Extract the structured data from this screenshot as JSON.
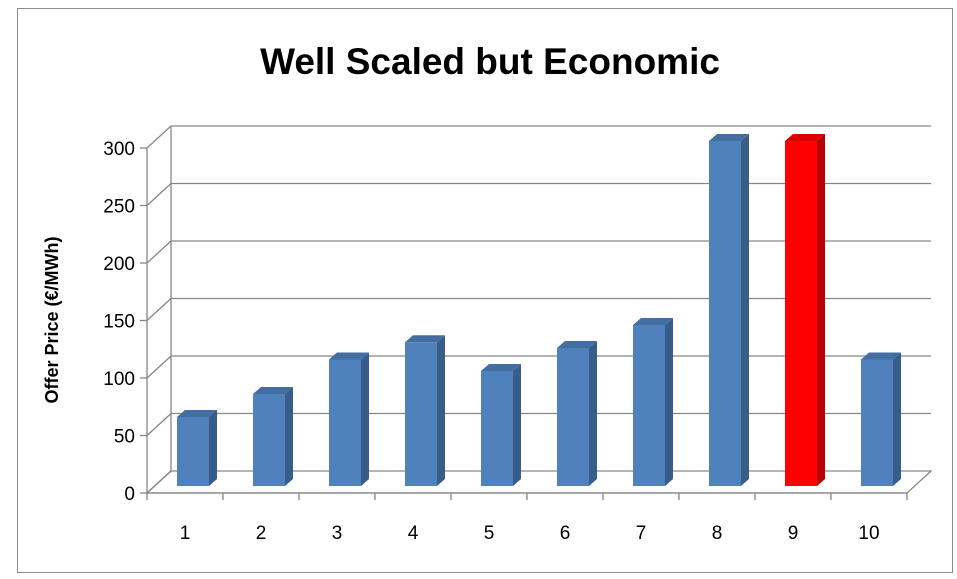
{
  "chart_data": {
    "type": "bar",
    "title": "Well Scaled but Economic",
    "xlabel": "",
    "ylabel": "Offer Price (€/MWh)",
    "categories": [
      "1",
      "2",
      "3",
      "4",
      "5",
      "6",
      "7",
      "8",
      "9",
      "10"
    ],
    "values": [
      60,
      80,
      110,
      125,
      100,
      120,
      140,
      300,
      300,
      110
    ],
    "ylim": [
      0,
      300
    ],
    "yticks": [
      "0",
      "50",
      "100",
      "150",
      "200",
      "250",
      "300"
    ],
    "grid": true,
    "legend": "none",
    "bar_color": "#4f81bd",
    "highlight_color": "#ff0000",
    "highlight_index": 8
  }
}
